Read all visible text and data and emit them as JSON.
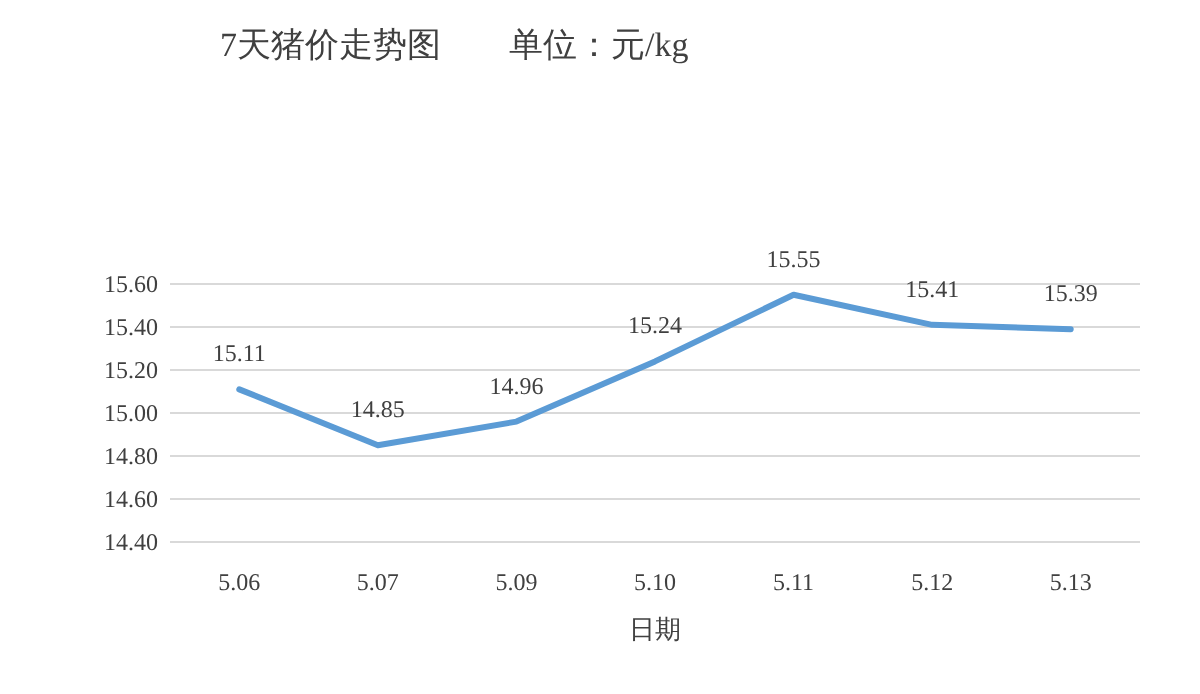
{
  "chart_data": {
    "type": "line",
    "title": "7天猪价走势图　　单位：元/kg",
    "xlabel": "日期",
    "categories": [
      "5.06",
      "5.07",
      "5.09",
      "5.10",
      "5.11",
      "5.12",
      "5.13"
    ],
    "series": [
      {
        "color": "#5b9bd5",
        "values": [
          15.11,
          14.85,
          14.96,
          15.24,
          15.55,
          15.41,
          15.39
        ]
      }
    ],
    "ylim": [
      14.4,
      15.6
    ],
    "yticks": [
      {
        "value": 14.4,
        "label": "14.40"
      },
      {
        "value": 14.6,
        "label": "14.60"
      },
      {
        "value": 14.8,
        "label": "14.80"
      },
      {
        "value": 15.0,
        "label": "15.00"
      },
      {
        "value": 15.2,
        "label": "15.20"
      },
      {
        "value": 15.4,
        "label": "15.40"
      },
      {
        "value": 15.6,
        "label": "15.60"
      }
    ],
    "grid": "y",
    "data_labels": true,
    "marker": "none",
    "line_style": "solid"
  }
}
